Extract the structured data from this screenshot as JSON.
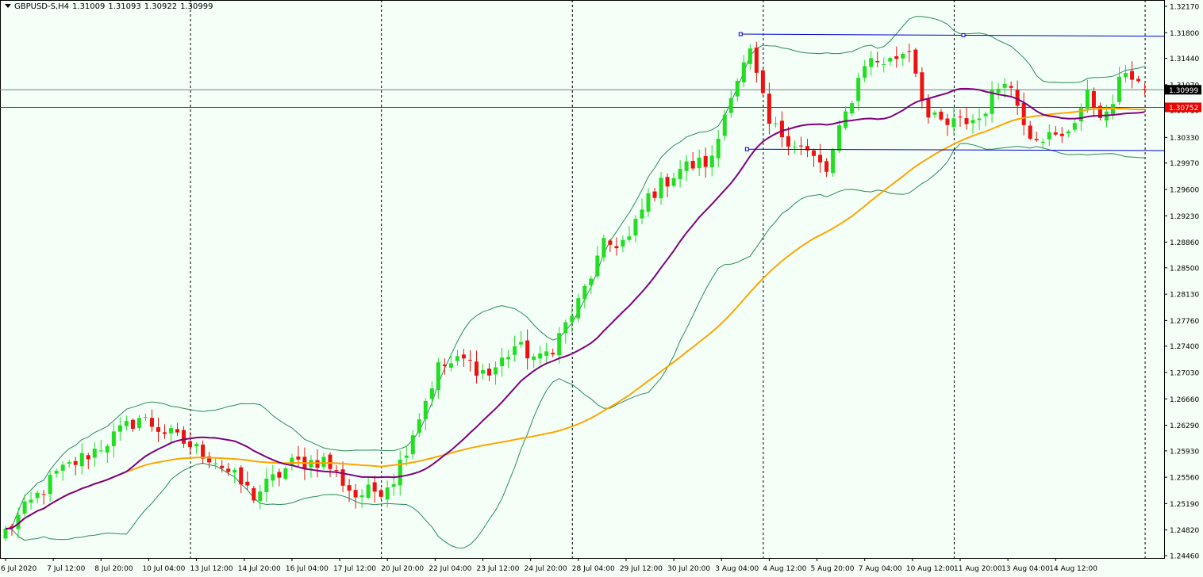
{
  "header": {
    "symbol": "GBPUSD-S,H4",
    "open": "1.31009",
    "high": "1.31093",
    "low": "1.30922",
    "close": "1.30999"
  },
  "colors": {
    "background": "#f3fff7",
    "bull": "#22dd22",
    "bear": "#ee1111",
    "ma_fast": "#800080",
    "ma_slow": "#ffa500",
    "bollinger": "#2e8b57",
    "channel": "#0000cc",
    "price_line": "#ee0000",
    "bid_line": "#708090",
    "grid": "#000000"
  },
  "chart_data": {
    "type": "candlestick",
    "y_ticks": [
      "1.32170",
      "1.31800",
      "1.31440",
      "1.31070",
      "1.30710",
      "1.30330",
      "1.29970",
      "1.29600",
      "1.29230",
      "1.28860",
      "1.28500",
      "1.28130",
      "1.27760",
      "1.27400",
      "1.27030",
      "1.26660",
      "1.26290",
      "1.25930",
      "1.25560",
      "1.25190",
      "1.24820",
      "1.24460"
    ],
    "ylim": [
      1.2446,
      1.3217
    ],
    "x_labels": [
      "6 Jul 2020",
      "7 Jul 12:00",
      "8 Jul 20:00",
      "10 Jul 04:00",
      "13 Jul 12:00",
      "14 Jul 20:00",
      "16 Jul 04:00",
      "17 Jul 12:00",
      "20 Jul 20:00",
      "22 Jul 04:00",
      "23 Jul 12:00",
      "24 Jul 20:00",
      "28 Jul 04:00",
      "29 Jul 12:00",
      "30 Jul 20:00",
      "3 Aug 04:00",
      "4 Aug 12:00",
      "5 Aug 20:00",
      "7 Aug 04:00",
      "10 Aug 12:00",
      "11 Aug 20:00",
      "13 Aug 04:00",
      "14 Aug 12:00"
    ],
    "bar_count": 180,
    "week_separator_bars": [
      29,
      59,
      89,
      119,
      149,
      179
    ],
    "current_bid": 1.30999,
    "current_bid_label": "1.30999",
    "level_line": 1.30752,
    "level_line_label": "1.30752",
    "close_path": [
      [
        0,
        1.248
      ],
      [
        8,
        1.256
      ],
      [
        15,
        1.26
      ],
      [
        21,
        1.264
      ],
      [
        27,
        1.261
      ],
      [
        33,
        1.258
      ],
      [
        39,
        1.253
      ],
      [
        45,
        1.2575
      ],
      [
        50,
        1.258
      ],
      [
        55,
        1.253
      ],
      [
        59,
        1.254
      ],
      [
        61,
        1.2555
      ],
      [
        64,
        1.262
      ],
      [
        68,
        1.271
      ],
      [
        72,
        1.272
      ],
      [
        76,
        1.27
      ],
      [
        80,
        1.274
      ],
      [
        84,
        1.272
      ],
      [
        86,
        1.274
      ],
      [
        90,
        1.28
      ],
      [
        94,
        1.288
      ],
      [
        98,
        1.289
      ],
      [
        101,
        1.295
      ],
      [
        106,
        1.299
      ],
      [
        111,
        1.3
      ],
      [
        114,
        1.31
      ],
      [
        117,
        1.315
      ],
      [
        120,
        1.305
      ],
      [
        125,
        1.302
      ],
      [
        129,
        1.2985
      ],
      [
        131,
        1.304
      ],
      [
        135,
        1.314
      ],
      [
        139,
        1.314
      ],
      [
        142,
        1.316
      ],
      [
        145,
        1.306
      ],
      [
        148,
        1.305
      ],
      [
        153,
        1.306
      ],
      [
        157,
        1.312
      ],
      [
        161,
        1.304
      ],
      [
        166,
        1.303
      ],
      [
        170,
        1.309
      ],
      [
        173,
        1.306
      ],
      [
        176,
        1.313
      ],
      [
        179,
        1.31
      ]
    ],
    "channel_upper": [
      [
        115.5,
        1.3178
      ],
      [
        179,
        1.3175
      ]
    ],
    "channel_lower": [
      [
        116.5,
        1.30165
      ],
      [
        179,
        1.30145
      ]
    ],
    "ma_fast_period": 20,
    "ma_slow_period": 60,
    "bollinger_period": 20,
    "bollinger_dev": 2
  }
}
